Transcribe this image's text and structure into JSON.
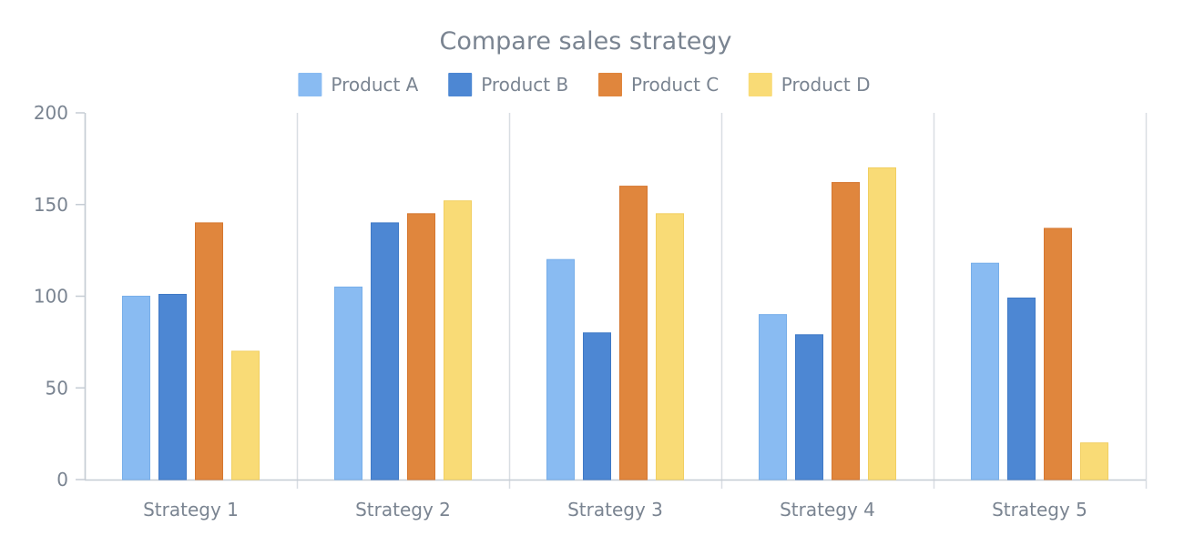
{
  "chart_data": {
    "type": "bar",
    "title": "Compare sales strategy",
    "xlabel": "",
    "ylabel": "",
    "ylim": [
      0,
      200
    ],
    "yticks": [
      0,
      50,
      100,
      150,
      200
    ],
    "grid": "vertical-category-separators",
    "legend_position": "top-center",
    "categories": [
      "Strategy 1",
      "Strategy 2",
      "Strategy 3",
      "Strategy 4",
      "Strategy 5"
    ],
    "series": [
      {
        "name": "Product A",
        "color": "#89bbf2",
        "stroke": "#77aee9",
        "values": [
          100,
          105,
          120,
          90,
          118
        ]
      },
      {
        "name": "Product B",
        "color": "#4d87d3",
        "stroke": "#3f79c6",
        "values": [
          101,
          140,
          80,
          79,
          99
        ]
      },
      {
        "name": "Product C",
        "color": "#e0863d",
        "stroke": "#d57730",
        "values": [
          140,
          145,
          160,
          162,
          137
        ]
      },
      {
        "name": "Product D",
        "color": "#f9db76",
        "stroke": "#f1cf62",
        "values": [
          70,
          152,
          145,
          170,
          20
        ]
      }
    ]
  }
}
